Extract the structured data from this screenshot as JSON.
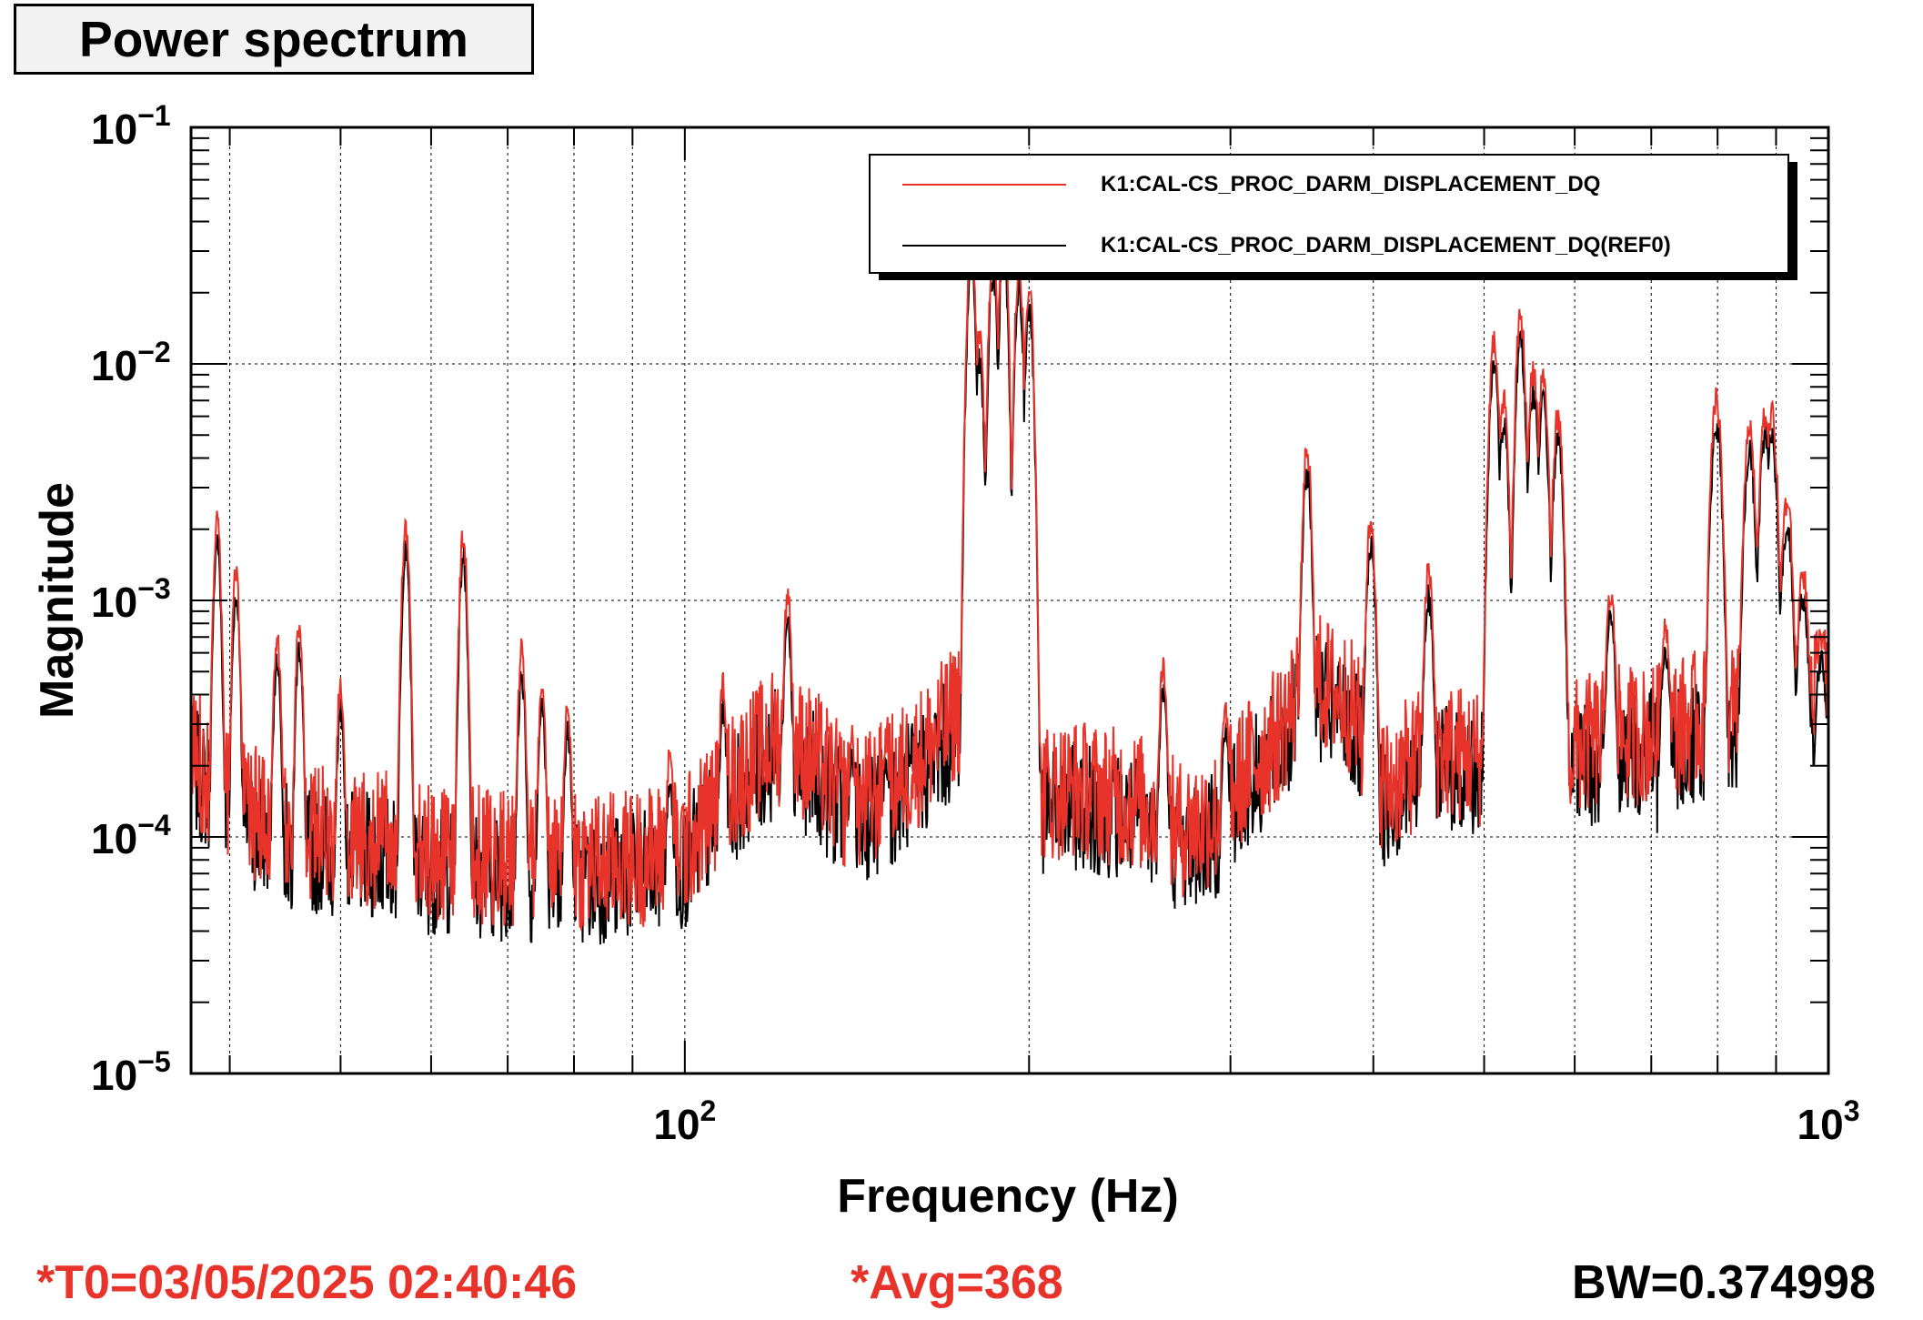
{
  "header": {
    "title": "Power spectrum"
  },
  "footer": {
    "t0": "*T0=03/05/2025 02:40:46",
    "avg": "*Avg=368",
    "bw": "BW=0.374998"
  },
  "colors": {
    "series_live": "#e8332a",
    "series_ref": "#000000",
    "footer_accent": "#e8332a"
  },
  "chart_data": {
    "type": "line",
    "xlabel": "Frequency (Hz)",
    "ylabel": "Magnitude",
    "xscale": "log",
    "yscale": "log",
    "xlim": [
      37,
      1000
    ],
    "ylim": [
      1e-05,
      0.1
    ],
    "grid": true,
    "legend_position": "top-right",
    "x_ticks": [
      {
        "value": 100,
        "base": "10",
        "exp": "2"
      },
      {
        "value": 1000,
        "base": "10",
        "exp": "3"
      }
    ],
    "y_ticks": [
      {
        "value": 0.1,
        "base": "10",
        "exp": "−1"
      },
      {
        "value": 0.01,
        "base": "10",
        "exp": "−2"
      },
      {
        "value": 0.001,
        "base": "10",
        "exp": "−3"
      },
      {
        "value": 0.0001,
        "base": "10",
        "exp": "−4"
      },
      {
        "value": 1e-05,
        "base": "10",
        "exp": "−5"
      }
    ],
    "baseline": [
      [
        37,
        0.00022
      ],
      [
        40,
        0.00013
      ],
      [
        45,
        0.0001
      ],
      [
        50,
        9.5e-05
      ],
      [
        55,
        9e-05
      ],
      [
        60,
        8e-05
      ],
      [
        65,
        7.8e-05
      ],
      [
        70,
        7.5e-05
      ],
      [
        80,
        7.2e-05
      ],
      [
        90,
        7.5e-05
      ],
      [
        100,
        8.5e-05
      ],
      [
        110,
        0.00016
      ],
      [
        120,
        0.00025
      ],
      [
        130,
        0.0002
      ],
      [
        140,
        0.00012
      ],
      [
        150,
        0.00015
      ],
      [
        160,
        0.0002
      ],
      [
        170,
        0.00028
      ],
      [
        178,
        0.0004
      ],
      [
        190,
        0.00012
      ],
      [
        200,
        0.00014
      ],
      [
        220,
        0.00015
      ],
      [
        250,
        0.00013
      ],
      [
        270,
        0.0001
      ],
      [
        290,
        0.00011
      ],
      [
        310,
        0.00018
      ],
      [
        330,
        0.00025
      ],
      [
        350,
        0.00045
      ],
      [
        380,
        0.00035
      ],
      [
        410,
        0.00015
      ],
      [
        450,
        0.00022
      ],
      [
        500,
        0.0002
      ],
      [
        550,
        0.0002
      ],
      [
        600,
        0.00022
      ],
      [
        650,
        0.00025
      ],
      [
        700,
        0.00025
      ],
      [
        750,
        0.00028
      ],
      [
        800,
        0.0003
      ],
      [
        850,
        0.00032
      ],
      [
        900,
        0.00033
      ],
      [
        950,
        0.00035
      ],
      [
        1000,
        0.00035
      ]
    ],
    "peaks": [
      {
        "f": 39,
        "a": 0.0025
      },
      {
        "f": 40.5,
        "a": 0.0015
      },
      {
        "f": 44,
        "a": 0.0008
      },
      {
        "f": 46,
        "a": 0.0009
      },
      {
        "f": 50,
        "a": 0.0005
      },
      {
        "f": 57,
        "a": 0.0024
      },
      {
        "f": 64,
        "a": 0.0022
      },
      {
        "f": 72,
        "a": 0.0007
      },
      {
        "f": 75,
        "a": 0.0005
      },
      {
        "f": 79,
        "a": 0.0004
      },
      {
        "f": 97,
        "a": 0.00025
      },
      {
        "f": 108,
        "a": 0.0005
      },
      {
        "f": 123,
        "a": 0.0012
      },
      {
        "f": 140,
        "a": 0.0003
      },
      {
        "f": 150,
        "a": 0.0003
      },
      {
        "f": 178,
        "a": 0.04
      },
      {
        "f": 181,
        "a": 0.015
      },
      {
        "f": 186,
        "a": 0.035
      },
      {
        "f": 190,
        "a": 0.045
      },
      {
        "f": 196,
        "a": 0.03
      },
      {
        "f": 200,
        "a": 0.025
      },
      {
        "f": 262,
        "a": 0.0006
      },
      {
        "f": 297,
        "a": 0.0004
      },
      {
        "f": 350,
        "a": 0.005
      },
      {
        "f": 398,
        "a": 0.0025
      },
      {
        "f": 447,
        "a": 0.0015
      },
      {
        "f": 510,
        "a": 0.014
      },
      {
        "f": 520,
        "a": 0.008
      },
      {
        "f": 538,
        "a": 0.018
      },
      {
        "f": 552,
        "a": 0.011
      },
      {
        "f": 563,
        "a": 0.01
      },
      {
        "f": 580,
        "a": 0.007
      },
      {
        "f": 645,
        "a": 0.0012
      },
      {
        "f": 720,
        "a": 0.0009
      },
      {
        "f": 798,
        "a": 0.008
      },
      {
        "f": 853,
        "a": 0.006
      },
      {
        "f": 880,
        "a": 0.007
      },
      {
        "f": 892,
        "a": 0.007
      },
      {
        "f": 920,
        "a": 0.003
      },
      {
        "f": 950,
        "a": 0.0015
      },
      {
        "f": 985,
        "a": 0.0008
      }
    ],
    "series": [
      {
        "name": "K1:CAL-CS_PROC_DARM_DISPLACEMENT_DQ",
        "color": "#e8332a"
      },
      {
        "name": "K1:CAL-CS_PROC_DARM_DISPLACEMENT_DQ(REF0)",
        "color": "#000000"
      }
    ]
  }
}
